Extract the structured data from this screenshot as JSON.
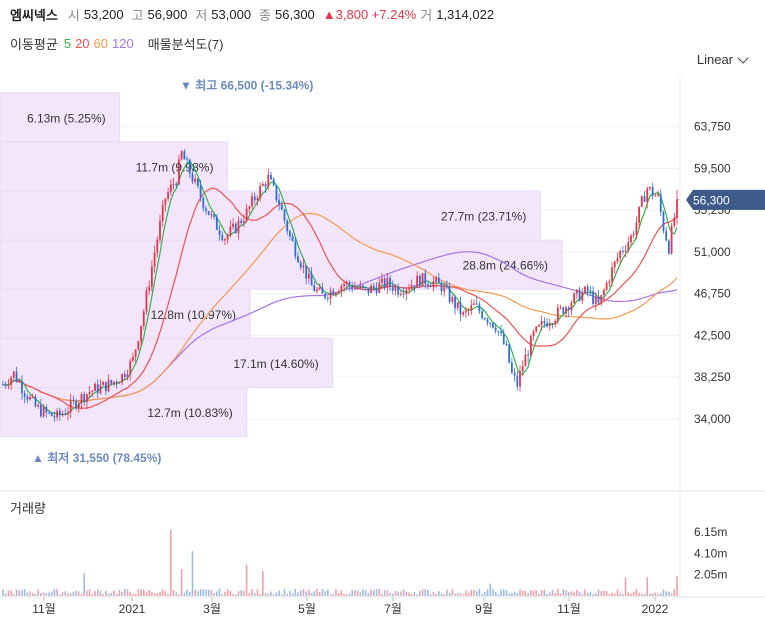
{
  "header": {
    "name": "엠씨넥스",
    "open_label": "시",
    "open": "53,200",
    "high_label": "고",
    "high": "56,900",
    "low_label": "저",
    "low": "53,000",
    "close_label": "종",
    "close": "56,300",
    "change": "▲3,800 +7.24%",
    "volume_label": "거",
    "volume": "1,314,022"
  },
  "ma_legend": {
    "title": "이동평균",
    "p5": "5",
    "p20": "20",
    "p60": "60",
    "p120": "120",
    "profile": "매물분석도(7)"
  },
  "scale_selector": "Linear",
  "volume_title": "거래량",
  "colors": {
    "up": "#e5354a",
    "down": "#2f6fdd",
    "ma5": "#2fb34a",
    "ma20": "#f05050",
    "ma60": "#f39a4c",
    "ma120": "#a774e8",
    "profile": "#f3e6fb"
  },
  "chart_data": {
    "type": "candlestick",
    "price_axis": {
      "ticks": [
        34000,
        38250,
        42500,
        46750,
        51000,
        55250,
        59500,
        63750
      ],
      "tick_labels": [
        "34,000",
        "38,250",
        "42,500",
        "46,750",
        "51,000",
        "55,250",
        "59,500",
        "63,750"
      ],
      "range": [
        29000,
        68500
      ]
    },
    "volume_axis": {
      "tick_labels": [
        "2.05m",
        "4.10m",
        "6.15m"
      ],
      "ticks": [
        2.05,
        4.1,
        6.15
      ],
      "range": [
        0,
        7.5
      ]
    },
    "time_labels": [
      "11월",
      "2021",
      "3월",
      "5월",
      "7월",
      "9월",
      "11월",
      "2022"
    ],
    "current_price": 56300,
    "current_price_label": "56,300",
    "high_marker": {
      "price": 66500,
      "label": "▼ 최고 66,500 (-15.34%)"
    },
    "low_marker": {
      "price": 31550,
      "label": "▲ 최저 31,550 (78.45%)"
    },
    "volume_profile": [
      {
        "label": "12.7m (10.83%)",
        "lo": 32200,
        "hi": 37200
      },
      {
        "label": "17.1m (14.60%)",
        "lo": 37200,
        "hi": 42200
      },
      {
        "label": "12.8m (10.97%)",
        "lo": 42200,
        "hi": 47200
      },
      {
        "label": "28.8m (24.66%)",
        "lo": 47200,
        "hi": 52200
      },
      {
        "label": "27.7m (23.71%)",
        "lo": 52200,
        "hi": 57200
      },
      {
        "label": "11.7m (9.98%)",
        "lo": 57200,
        "hi": 62200
      },
      {
        "label": "6.13m (5.25%)",
        "lo": 62200,
        "hi": 67200
      }
    ],
    "trend_points": [
      [
        0,
        37500
      ],
      [
        4,
        38600
      ],
      [
        8,
        36800
      ],
      [
        12,
        35200
      ],
      [
        16,
        34500
      ],
      [
        20,
        34200
      ],
      [
        24,
        35000
      ],
      [
        28,
        36000
      ],
      [
        32,
        36800
      ],
      [
        36,
        37200
      ],
      [
        40,
        37600
      ],
      [
        44,
        38400
      ],
      [
        48,
        40000
      ],
      [
        52,
        45000
      ],
      [
        56,
        51000
      ],
      [
        60,
        56500
      ],
      [
        64,
        58500
      ],
      [
        66,
        61000
      ],
      [
        70,
        58500
      ],
      [
        74,
        56000
      ],
      [
        78,
        54000
      ],
      [
        82,
        52500
      ],
      [
        86,
        53500
      ],
      [
        90,
        55000
      ],
      [
        94,
        57000
      ],
      [
        98,
        58500
      ],
      [
        102,
        56000
      ],
      [
        106,
        52500
      ],
      [
        110,
        50000
      ],
      [
        114,
        47500
      ],
      [
        118,
        46500
      ],
      [
        122,
        47200
      ],
      [
        126,
        47800
      ],
      [
        130,
        47400
      ],
      [
        134,
        47000
      ],
      [
        138,
        47500
      ],
      [
        142,
        47800
      ],
      [
        146,
        47200
      ],
      [
        150,
        47600
      ],
      [
        154,
        48200
      ],
      [
        158,
        48000
      ],
      [
        162,
        47500
      ],
      [
        166,
        46000
      ],
      [
        170,
        44500
      ],
      [
        174,
        45500
      ],
      [
        178,
        44500
      ],
      [
        182,
        43500
      ],
      [
        186,
        41000
      ],
      [
        188,
        38500
      ],
      [
        190,
        37500
      ],
      [
        192,
        39500
      ],
      [
        196,
        42500
      ],
      [
        200,
        43800
      ],
      [
        204,
        44500
      ],
      [
        208,
        45500
      ],
      [
        212,
        46500
      ],
      [
        216,
        47000
      ],
      [
        220,
        45500
      ],
      [
        224,
        48500
      ],
      [
        228,
        51000
      ],
      [
        232,
        52500
      ],
      [
        234,
        54000
      ],
      [
        236,
        56000
      ],
      [
        238,
        57500
      ],
      [
        240,
        57000
      ],
      [
        242,
        56500
      ],
      [
        244,
        53500
      ],
      [
        246,
        51500
      ],
      [
        248,
        54500
      ],
      [
        249,
        56300
      ]
    ],
    "volume_spikes": [
      [
        62,
        6.4
      ],
      [
        70,
        4.3
      ],
      [
        66,
        2.6
      ],
      [
        90,
        3.0
      ],
      [
        30,
        2.2
      ],
      [
        96,
        2.4
      ],
      [
        230,
        1.8
      ],
      [
        238,
        1.8
      ],
      [
        249,
        1.9
      ],
      [
        180,
        1.2
      ]
    ]
  }
}
